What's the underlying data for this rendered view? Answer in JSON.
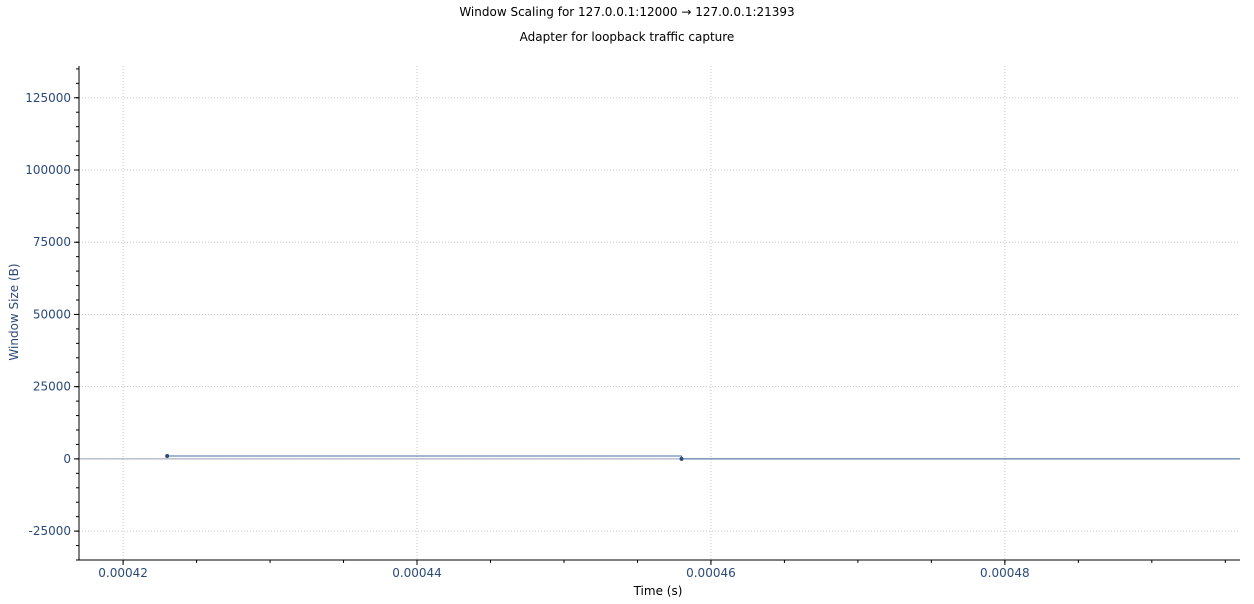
{
  "chart_data": {
    "type": "line",
    "title": "Window Scaling for 127.0.0.1:12000 → 127.0.0.1:21393",
    "subtitle": "Adapter for loopback traffic capture",
    "xlabel": "Time (s)",
    "ylabel": "Window Size (B)",
    "xlim": [
      0.000417,
      0.000496
    ],
    "ylim": [
      -35000,
      136000
    ],
    "xticks": [
      0.00042,
      0.00044,
      0.00046,
      0.00048
    ],
    "xtick_labels": [
      "0.00042",
      "0.00044",
      "0.00046",
      "0.00048"
    ],
    "yticks": [
      -25000,
      0,
      25000,
      50000,
      75000,
      100000,
      125000
    ],
    "ytick_labels": [
      "-25000",
      "0",
      "25000",
      "50000",
      "75000",
      "100000",
      "125000"
    ],
    "grid": true,
    "series": [
      {
        "style": "step",
        "color": "#4a6fa5",
        "x": [
          0.000423,
          0.000458,
          0.000496
        ],
        "y": [
          1000,
          0,
          0
        ]
      }
    ],
    "axis_color": "#2b4a7a",
    "grid_color": "#c8c8c8"
  }
}
